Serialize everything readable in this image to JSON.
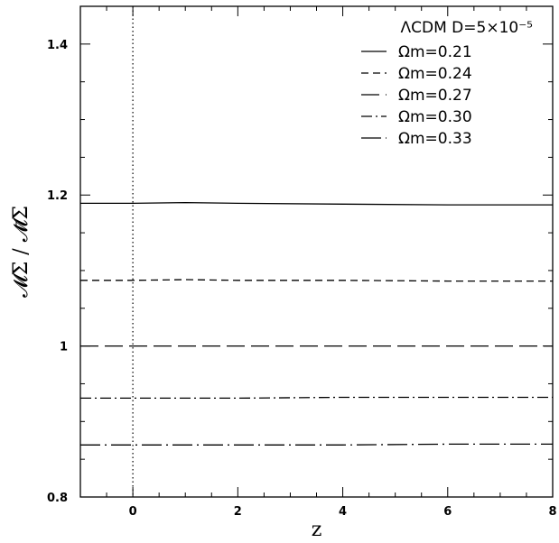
{
  "chart_data": {
    "type": "line",
    "title": "",
    "xlabel": "z",
    "ylabel": "𝓜Σ / 𝓜̄Σ",
    "xlim": [
      -1,
      8
    ],
    "ylim": [
      0.8,
      1.45
    ],
    "x_ticks": [
      0,
      2,
      4,
      6,
      8
    ],
    "x_tick_labels": [
      "0",
      "2",
      "4",
      "6",
      "8"
    ],
    "y_ticks": [
      0.8,
      1.0,
      1.2,
      1.4
    ],
    "y_tick_labels": [
      "0.8",
      "1",
      "1.2",
      "1.4"
    ],
    "grid": false,
    "legend_placement": "top-right",
    "legend_title": "ΛCDM  D=5×10⁻⁵",
    "reference_line": {
      "x": 0,
      "style": "dotted"
    },
    "series": [
      {
        "name": "Ωm=0.21",
        "dash": "solid",
        "x": [
          -1,
          0,
          1,
          2,
          4,
          6,
          8
        ],
        "y": [
          1.189,
          1.189,
          1.19,
          1.189,
          1.188,
          1.187,
          1.187
        ]
      },
      {
        "name": "Ωm=0.24",
        "dash": "short-dash",
        "x": [
          -1,
          0,
          1,
          2,
          4,
          6,
          8
        ],
        "y": [
          1.087,
          1.087,
          1.088,
          1.087,
          1.087,
          1.086,
          1.086
        ]
      },
      {
        "name": "Ωm=0.27",
        "dash": "long-dash",
        "x": [
          -1,
          0,
          1,
          2,
          4,
          6,
          8
        ],
        "y": [
          1.0,
          1.0,
          1.0,
          1.0,
          1.0,
          1.0,
          1.0
        ]
      },
      {
        "name": "Ωm=0.30",
        "dash": "dash-dot",
        "x": [
          -1,
          0,
          1,
          2,
          4,
          6,
          8
        ],
        "y": [
          0.931,
          0.931,
          0.931,
          0.931,
          0.932,
          0.932,
          0.932
        ]
      },
      {
        "name": "Ωm=0.33",
        "dash": "long-dash-dot",
        "x": [
          -1,
          0,
          1,
          2,
          4,
          6,
          8
        ],
        "y": [
          0.869,
          0.869,
          0.869,
          0.869,
          0.869,
          0.87,
          0.87
        ]
      }
    ]
  }
}
